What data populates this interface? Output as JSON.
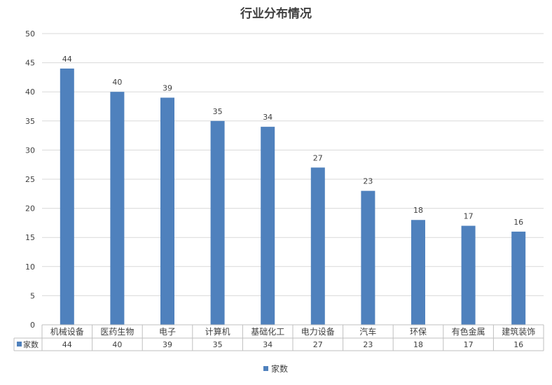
{
  "chart_data": {
    "type": "bar",
    "title": "行业分布情况",
    "categories": [
      "机械设备",
      "医药生物",
      "电子",
      "计算机",
      "基础化工",
      "电力设备",
      "汽车",
      "环保",
      "有色金属",
      "建筑装饰"
    ],
    "series": [
      {
        "name": "家数",
        "values": [
          44,
          40,
          39,
          35,
          34,
          27,
          23,
          18,
          17,
          16
        ]
      }
    ],
    "ylim": [
      0,
      50
    ],
    "yticks": [
      0,
      5,
      10,
      15,
      20,
      25,
      30,
      35,
      40,
      45,
      50
    ],
    "grid": true,
    "data_labels": true,
    "data_table": true,
    "legend_position": "bottom",
    "colors": {
      "bar": "#4F81BD",
      "grid": "#D9D9D9",
      "axis": "#BFBFBF",
      "text": "#404040"
    }
  }
}
